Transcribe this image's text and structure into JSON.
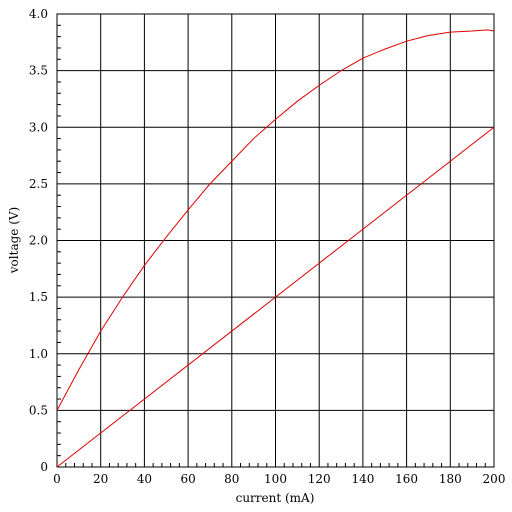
{
  "chart_data": {
    "type": "line",
    "title": "",
    "xlabel": "current (mA)",
    "ylabel": "voltage (V)",
    "xlim": [
      0,
      200
    ],
    "ylim": [
      0,
      4.0
    ],
    "grid": true,
    "x_ticks": [
      "0",
      "20",
      "40",
      "60",
      "80",
      "100",
      "120",
      "140",
      "160",
      "180",
      "200"
    ],
    "y_ticks": [
      "0",
      "0.5",
      "1.0",
      "1.5",
      "2.0",
      "2.5",
      "3.0",
      "3.5",
      "4.0"
    ],
    "x_tick_values": [
      0,
      20,
      40,
      60,
      80,
      100,
      120,
      140,
      160,
      180,
      200
    ],
    "y_tick_values": [
      0,
      0.5,
      1.0,
      1.5,
      2.0,
      2.5,
      3.0,
      3.5,
      4.0
    ],
    "series_color": "#e00000",
    "series": [
      {
        "x": [
          0,
          10,
          20,
          30,
          40,
          50,
          60,
          70,
          80,
          90,
          100,
          110,
          120,
          130,
          140,
          150,
          160,
          170,
          180,
          190,
          197,
          200
        ],
        "values": [
          0.5,
          0.86,
          1.2,
          1.5,
          1.78,
          2.03,
          2.27,
          2.5,
          2.7,
          2.9,
          3.07,
          3.23,
          3.37,
          3.5,
          3.61,
          3.69,
          3.76,
          3.81,
          3.84,
          3.85,
          3.86,
          3.85
        ]
      },
      {
        "x": [
          0,
          200
        ],
        "values": [
          0,
          3.0
        ]
      }
    ]
  }
}
